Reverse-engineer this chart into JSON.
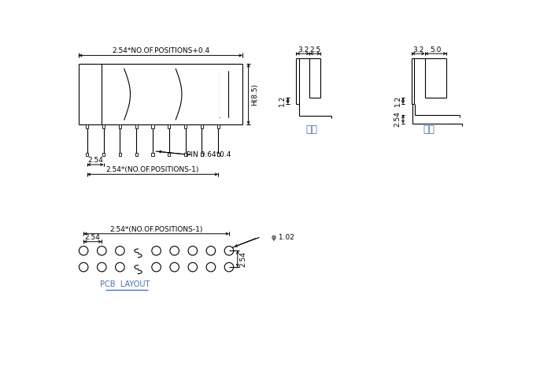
{
  "bg_color": "#ffffff",
  "line_color": "#000000",
  "dim_color": "#000000",
  "pcb_label_color": "#4472c4",
  "chinese_label_color": "#4472c4",
  "font_size_dim": 6.5,
  "font_size_label": 9,
  "font_size_pcb": 6.5,
  "title_top": "2.54*NO.OF.POSITIONS+0.4",
  "dim_254": "2.54",
  "dim_pin": "PIN 0.64*0.4",
  "dim_positions_1": "2.54*(NO.OF.POSITIONS-1)",
  "dim_h85": "H(8.5)",
  "dim_32": "3.2",
  "dim_25": "2.5",
  "dim_50": "5.0",
  "dim_12": "1.2",
  "dim_254b": "2.54",
  "dim_phi102": "φ 1.02",
  "dim_254c": "2.54",
  "label_single": "单排",
  "label_double": "双排",
  "label_pcb": "PCB  LAYOUT",
  "dim_positions_1b": "2.54*(NO.OF.POSITIONS-1)"
}
